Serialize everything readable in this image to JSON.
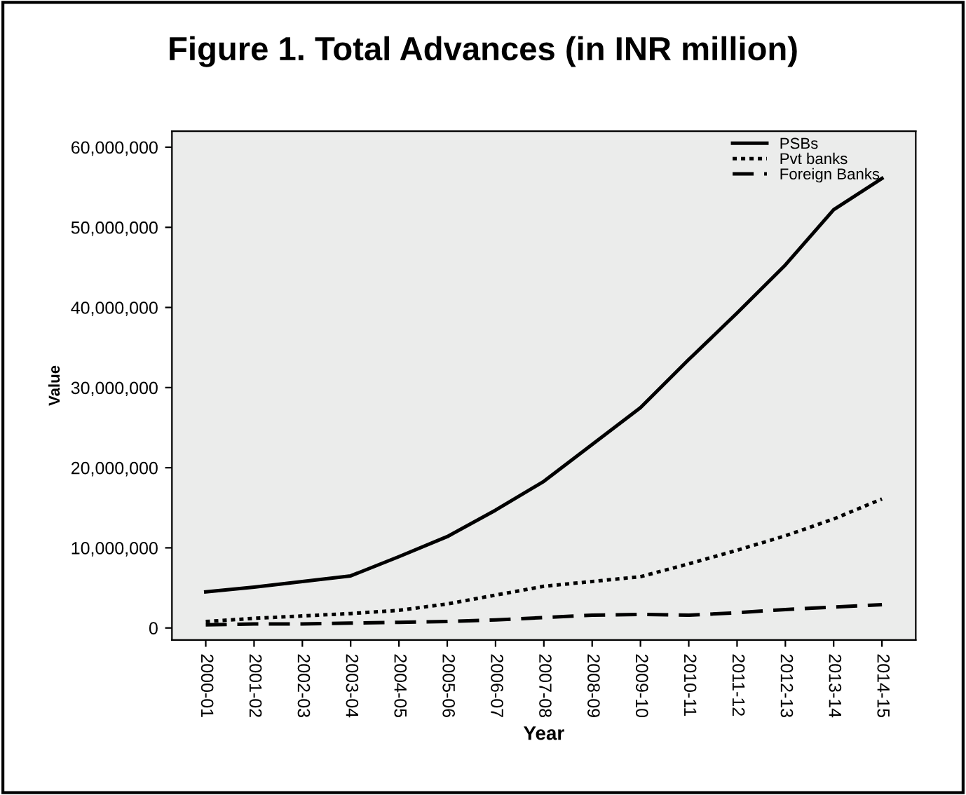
{
  "chart_data": {
    "type": "line",
    "title": "Figure 1. Total Advances (in INR million)",
    "xlabel": "Year",
    "ylabel": "Value",
    "categories": [
      "2000-01",
      "2001-02",
      "2002-03",
      "2003-04",
      "2004-05",
      "2005-06",
      "2006-07",
      "2007-08",
      "2008-09",
      "2009-10",
      "2010-11",
      "2011-12",
      "2012-13",
      "2013-14",
      "2014-15"
    ],
    "series": [
      {
        "name": "PSBs",
        "color": "#000000",
        "line_style": "solid",
        "values": [
          4500000,
          5100000,
          5800000,
          6500000,
          8900000,
          11400000,
          14700000,
          18300000,
          22900000,
          27500000,
          33500000,
          39300000,
          45300000,
          52200000,
          56100000
        ]
      },
      {
        "name": "Pvt banks",
        "color": "#000000",
        "line_style": "dotted",
        "values": [
          800000,
          1200000,
          1500000,
          1800000,
          2200000,
          3000000,
          4100000,
          5200000,
          5800000,
          6400000,
          8000000,
          9700000,
          11500000,
          13600000,
          16100000
        ]
      },
      {
        "name": "Foreign Banks",
        "color": "#000000",
        "line_style": "dashed",
        "values": [
          400000,
          500000,
          500000,
          600000,
          700000,
          800000,
          1000000,
          1300000,
          1600000,
          1700000,
          1600000,
          1900000,
          2300000,
          2600000,
          2900000
        ]
      }
    ],
    "ylim": [
      -1500000,
      62000000
    ],
    "yticks": [
      {
        "value": 0,
        "label": "0"
      },
      {
        "value": 10000000,
        "label": "10,000,000"
      },
      {
        "value": 20000000,
        "label": "20,000,000"
      },
      {
        "value": 30000000,
        "label": "30,000,000"
      },
      {
        "value": 40000000,
        "label": "40,000,000"
      },
      {
        "value": 50000000,
        "label": "50,000,000"
      },
      {
        "value": 60000000,
        "label": "60,000,000"
      }
    ],
    "grid": false,
    "legend": "top right",
    "marker": "none"
  }
}
